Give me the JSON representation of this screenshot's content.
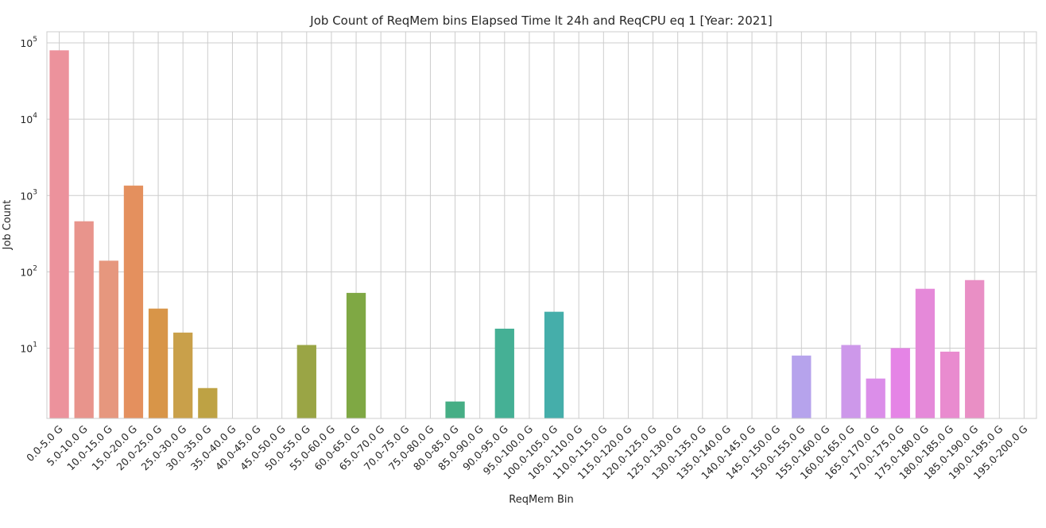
{
  "chart_data": {
    "type": "bar",
    "title": "Job Count of ReqMem bins Elapsed Time lt 24h and ReqCPU eq 1 [Year: 2021]",
    "xlabel": "ReqMem Bin",
    "ylabel": "Job Count",
    "yscale": "log",
    "ylim": [
      1.2,
      140000
    ],
    "yticks": [
      10,
      100,
      1000,
      10000,
      100000
    ],
    "ytick_labels": [
      {
        "base": "10",
        "exp": "1"
      },
      {
        "base": "10",
        "exp": "2"
      },
      {
        "base": "10",
        "exp": "3"
      },
      {
        "base": "10",
        "exp": "4"
      },
      {
        "base": "10",
        "exp": "5"
      }
    ],
    "grid": true,
    "legend": "none",
    "categories": [
      "0.0-5.0 G",
      "5.0-10.0 G",
      "10.0-15.0 G",
      "15.0-20.0 G",
      "20.0-25.0 G",
      "25.0-30.0 G",
      "30.0-35.0 G",
      "35.0-40.0 G",
      "40.0-45.0 G",
      "45.0-50.0 G",
      "50.0-55.0 G",
      "55.0-60.0 G",
      "60.0-65.0 G",
      "65.0-70.0 G",
      "70.0-75.0 G",
      "75.0-80.0 G",
      "80.0-85.0 G",
      "85.0-90.0 G",
      "90.0-95.0 G",
      "95.0-100.0 G",
      "100.0-105.0 G",
      "105.0-110.0 G",
      "110.0-115.0 G",
      "115.0-120.0 G",
      "120.0-125.0 G",
      "125.0-130.0 G",
      "130.0-135.0 G",
      "135.0-140.0 G",
      "140.0-145.0 G",
      "145.0-150.0 G",
      "150.0-155.0 G",
      "155.0-160.0 G",
      "160.0-165.0 G",
      "165.0-170.0 G",
      "170.0-175.0 G",
      "175.0-180.0 G",
      "180.0-185.0 G",
      "185.0-190.0 G",
      "190.0-195.0 G",
      "195.0-200.0 G"
    ],
    "values": [
      80000,
      460,
      140,
      1350,
      33,
      16,
      3,
      0,
      0,
      0,
      11,
      0,
      53,
      0,
      0,
      0,
      2,
      0,
      18,
      0,
      30,
      0,
      0,
      0,
      0,
      0,
      0,
      0,
      0,
      0,
      8,
      0,
      11,
      4,
      10,
      60,
      9,
      78,
      0,
      0
    ],
    "colors": [
      "#ec929c",
      "#e8948c",
      "#e6977e",
      "#e4905e",
      "#d89548",
      "#c9a04a",
      "#bea244",
      "#b5a43f",
      "#aba53f",
      "#a3a743",
      "#9aa545",
      "#8ea849",
      "#7fa844",
      "#6fac5a",
      "#5ead6e",
      "#51ae7a",
      "#46ae85",
      "#44af8e",
      "#45b095",
      "#45af9f",
      "#45aeaa",
      "#44a9b1",
      "#48a8bd",
      "#4fa6c7",
      "#5aa3d0",
      "#67a0d9",
      "#7c9ee3",
      "#8c9ce8",
      "#9e9cea",
      "#ac9feb",
      "#b6a3ec",
      "#c39eeb",
      "#cd98ea",
      "#db8ee9",
      "#e584e6",
      "#e589d9",
      "#e98bcf",
      "#e98fc5",
      "#ea91bb",
      "#eb92b0"
    ]
  }
}
